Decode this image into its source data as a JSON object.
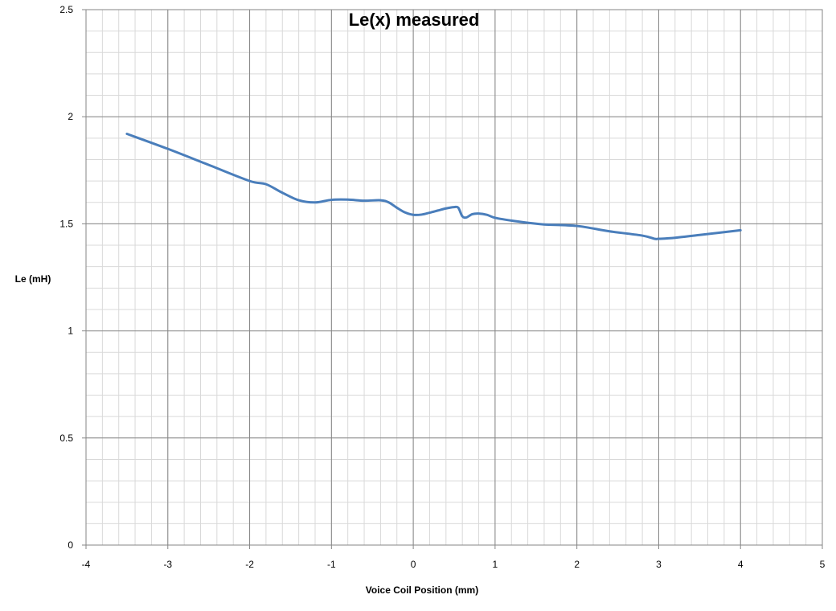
{
  "chart_data": {
    "type": "line",
    "title": "Le(x) measured",
    "xlabel": "Voice Coil Position (mm)",
    "ylabel": "Le (mH)",
    "xlim": [
      -4,
      5
    ],
    "ylim": [
      0,
      2.5
    ],
    "x_ticks": [
      -4,
      -3,
      -2,
      -1,
      0,
      1,
      2,
      3,
      4,
      5
    ],
    "y_ticks": [
      0,
      0.5,
      1,
      1.5,
      2,
      2.5
    ],
    "grid": true,
    "minor_grid": {
      "x_step": 0.2,
      "y_step": 0.1
    },
    "legend": "none",
    "series": [
      {
        "color": "#4A7EBB",
        "points": [
          [
            -3.5,
            1.92
          ],
          [
            -3.0,
            1.85
          ],
          [
            -2.5,
            1.775
          ],
          [
            -2.0,
            1.7
          ],
          [
            -1.8,
            1.685
          ],
          [
            -1.6,
            1.645
          ],
          [
            -1.4,
            1.61
          ],
          [
            -1.2,
            1.6
          ],
          [
            -1.0,
            1.612
          ],
          [
            -0.8,
            1.613
          ],
          [
            -0.6,
            1.608
          ],
          [
            -0.4,
            1.61
          ],
          [
            -0.3,
            1.6
          ],
          [
            -0.2,
            1.575
          ],
          [
            -0.1,
            1.553
          ],
          [
            0.0,
            1.542
          ],
          [
            0.1,
            1.543
          ],
          [
            0.2,
            1.552
          ],
          [
            0.3,
            1.562
          ],
          [
            0.4,
            1.572
          ],
          [
            0.5,
            1.578
          ],
          [
            0.55,
            1.575
          ],
          [
            0.6,
            1.535
          ],
          [
            0.65,
            1.53
          ],
          [
            0.72,
            1.545
          ],
          [
            0.8,
            1.548
          ],
          [
            0.9,
            1.542
          ],
          [
            1.0,
            1.528
          ],
          [
            1.2,
            1.515
          ],
          [
            1.4,
            1.505
          ],
          [
            1.6,
            1.497
          ],
          [
            2.0,
            1.49
          ],
          [
            2.4,
            1.465
          ],
          [
            2.8,
            1.445
          ],
          [
            2.95,
            1.43
          ],
          [
            3.0,
            1.43
          ],
          [
            3.2,
            1.435
          ],
          [
            3.5,
            1.448
          ],
          [
            4.0,
            1.47
          ]
        ]
      }
    ]
  }
}
